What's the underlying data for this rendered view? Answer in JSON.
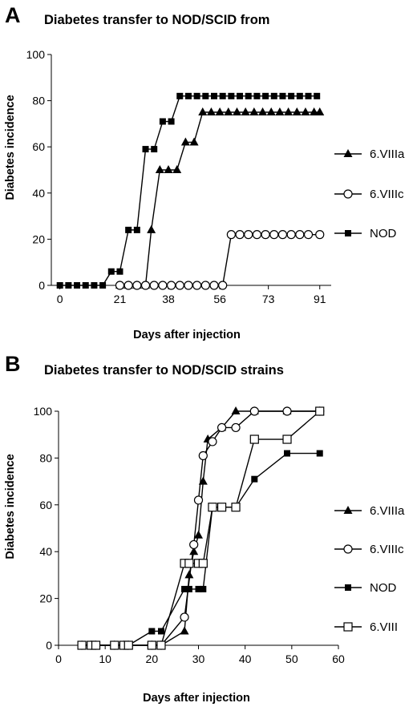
{
  "chart_data": [
    {
      "panel": "A",
      "type": "line",
      "title": "Diabetes transfer to NOD/SCID from",
      "xlabel": "Days after injection",
      "ylabel": "Diabetes incidence",
      "xlim": [
        -3,
        95
      ],
      "ylim": [
        0,
        100
      ],
      "xticks": [
        0,
        21,
        38,
        56,
        73,
        91
      ],
      "yticks": [
        0,
        20,
        40,
        60,
        80,
        100
      ],
      "grid": false,
      "legend_position": "right",
      "series": [
        {
          "name": "6.VIIIa",
          "marker": "filled-triangle",
          "x": [
            21,
            24,
            27,
            30,
            32,
            35,
            38,
            41,
            44,
            47,
            50,
            53,
            56,
            59,
            62,
            65,
            68,
            71,
            74,
            77,
            80,
            83,
            86,
            89,
            91
          ],
          "y": [
            0,
            0,
            0,
            0,
            24,
            50,
            50,
            50,
            62,
            62,
            75,
            75,
            75,
            75,
            75,
            75,
            75,
            75,
            75,
            75,
            75,
            75,
            75,
            75,
            75
          ]
        },
        {
          "name": "6.VIIIc",
          "marker": "open-circle",
          "x": [
            21,
            24,
            27,
            30,
            33,
            36,
            39,
            42,
            45,
            48,
            51,
            54,
            57,
            60,
            63,
            66,
            69,
            72,
            75,
            78,
            81,
            84,
            87,
            91
          ],
          "y": [
            0,
            0,
            0,
            0,
            0,
            0,
            0,
            0,
            0,
            0,
            0,
            0,
            0,
            22,
            22,
            22,
            22,
            22,
            22,
            22,
            22,
            22,
            22,
            22
          ]
        },
        {
          "name": "NOD",
          "marker": "filled-square",
          "x": [
            0,
            3,
            6,
            9,
            12,
            15,
            18,
            21,
            24,
            27,
            30,
            33,
            36,
            39,
            42,
            45,
            48,
            51,
            54,
            57,
            60,
            63,
            66,
            69,
            72,
            75,
            78,
            81,
            84,
            87,
            90
          ],
          "y": [
            0,
            0,
            0,
            0,
            0,
            0,
            6,
            6,
            24,
            24,
            59,
            59,
            71,
            71,
            82,
            82,
            82,
            82,
            82,
            82,
            82,
            82,
            82,
            82,
            82,
            82,
            82,
            82,
            82,
            82,
            82
          ]
        }
      ]
    },
    {
      "panel": "B",
      "type": "line",
      "title": "Diabetes transfer to NOD/SCID strains",
      "xlabel": "Days after injection",
      "ylabel": "Diabetes incidence",
      "xlim": [
        0,
        60
      ],
      "ylim": [
        0,
        100
      ],
      "xticks": [
        0,
        10,
        20,
        30,
        40,
        50,
        60
      ],
      "yticks": [
        0,
        20,
        40,
        60,
        80,
        100
      ],
      "grid": false,
      "legend_position": "right",
      "series": [
        {
          "name": "6.VIIIa",
          "marker": "filled-triangle",
          "x": [
            5,
            7,
            8,
            12,
            14,
            15,
            20,
            22,
            27,
            28,
            29,
            30,
            31,
            32,
            35,
            38,
            42,
            49,
            56
          ],
          "y": [
            0,
            0,
            0,
            0,
            0,
            0,
            0,
            0,
            6,
            30,
            40,
            47,
            70,
            88,
            93,
            100,
            100,
            100,
            100
          ]
        },
        {
          "name": "6.VIIIc",
          "marker": "open-circle",
          "x": [
            5,
            7,
            8,
            12,
            14,
            15,
            20,
            22,
            27,
            29,
            30,
            31,
            33,
            35,
            38,
            42,
            49,
            56
          ],
          "y": [
            0,
            0,
            0,
            0,
            0,
            0,
            0,
            0,
            12,
            43,
            62,
            81,
            87,
            93,
            93,
            100,
            100,
            100
          ]
        },
        {
          "name": "NOD",
          "marker": "filled-square",
          "x": [
            5,
            7,
            8,
            12,
            14,
            15,
            20,
            22,
            27,
            28,
            30,
            31,
            33,
            35,
            38,
            42,
            49,
            56
          ],
          "y": [
            0,
            0,
            0,
            0,
            0,
            0,
            6,
            6,
            24,
            24,
            24,
            24,
            59,
            59,
            59,
            71,
            82,
            82
          ]
        },
        {
          "name": "6.VIII",
          "marker": "open-square",
          "x": [
            5,
            7,
            8,
            12,
            14,
            15,
            20,
            22,
            27,
            28,
            30,
            31,
            33,
            35,
            38,
            42,
            49,
            56
          ],
          "y": [
            0,
            0,
            0,
            0,
            0,
            0,
            0,
            0,
            35,
            35,
            35,
            35,
            59,
            59,
            59,
            88,
            88,
            100
          ]
        }
      ]
    }
  ]
}
